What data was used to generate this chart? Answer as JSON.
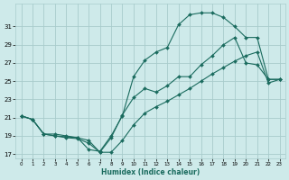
{
  "background_color": "#ceeaea",
  "grid_color": "#a8cccc",
  "line_color": "#1a6b5e",
  "xlabel": "Humidex (Indice chaleur)",
  "ylim": [
    16.5,
    33.5
  ],
  "xlim": [
    -0.5,
    23.5
  ],
  "yticks": [
    17,
    19,
    21,
    23,
    25,
    27,
    29,
    31
  ],
  "xticks": [
    0,
    1,
    2,
    3,
    4,
    5,
    6,
    7,
    8,
    9,
    10,
    11,
    12,
    13,
    14,
    15,
    16,
    17,
    18,
    19,
    20,
    21,
    22,
    23
  ],
  "series1_y": [
    21.2,
    20.8,
    19.2,
    19.2,
    19.0,
    18.8,
    17.5,
    17.3,
    19.0,
    21.2,
    25.5,
    27.3,
    28.2,
    28.7,
    31.2,
    32.3,
    32.5,
    32.5,
    32.0,
    31.0,
    29.8,
    29.8,
    25.2,
    25.2
  ],
  "series2_y": [
    21.2,
    20.8,
    19.2,
    19.0,
    18.9,
    18.8,
    18.5,
    17.2,
    18.8,
    21.3,
    23.2,
    24.2,
    23.8,
    24.5,
    25.5,
    25.5,
    26.8,
    27.8,
    29.0,
    29.8,
    27.0,
    26.8,
    25.2,
    25.2
  ],
  "series3_y": [
    21.2,
    20.8,
    19.2,
    19.0,
    18.8,
    18.7,
    18.2,
    17.2,
    17.2,
    18.5,
    20.2,
    21.5,
    22.2,
    22.8,
    23.5,
    24.2,
    25.0,
    25.8,
    26.5,
    27.2,
    27.8,
    28.2,
    24.8,
    25.2
  ]
}
